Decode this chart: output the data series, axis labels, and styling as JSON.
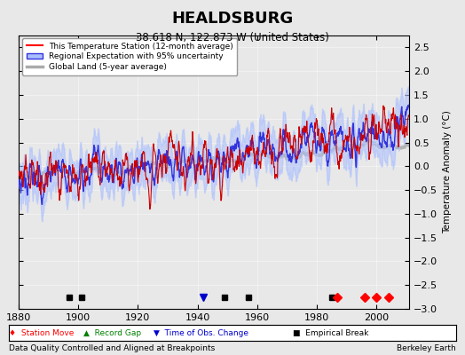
{
  "title": "HEALDSBURG",
  "subtitle": "38.618 N, 122.873 W (United States)",
  "xlabel_note": "Data Quality Controlled and Aligned at Breakpoints",
  "source_note": "Berkeley Earth",
  "xlim": [
    1880,
    2011
  ],
  "ylim": [
    -3,
    2.75
  ],
  "yticks": [
    -3,
    -2.5,
    -2,
    -1.5,
    -1,
    -0.5,
    0,
    0.5,
    1,
    1.5,
    2,
    2.5
  ],
  "xticks": [
    1880,
    1900,
    1920,
    1940,
    1960,
    1980,
    2000
  ],
  "bg_color": "#e8e8e8",
  "plot_bg_color": "#e8e8e8",
  "legend_color": "red",
  "station_moves": [
    1987,
    1996,
    2000,
    2004
  ],
  "empirical_breaks": [
    1897,
    1901,
    1949,
    1957,
    1985
  ],
  "obs_changes": [
    1942
  ],
  "record_gaps": []
}
